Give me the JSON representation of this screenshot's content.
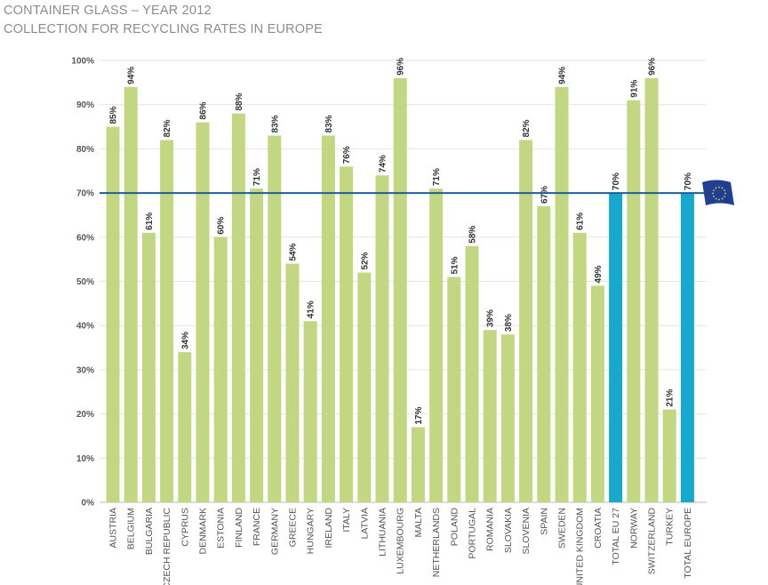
{
  "title": "CONTAINER GLASS – YEAR 2012",
  "subtitle": "COLLECTION FOR RECYCLING RATES IN EUROPE",
  "colors": {
    "bar": "#c3d783",
    "total_bar": "#16a9cd",
    "target_line": "#1b5e9a",
    "flag_bg": "#1f3f97",
    "flag_stars": "#f5d800"
  },
  "icons": {
    "flag": "eu-flag-icon"
  },
  "chart_data": {
    "type": "bar",
    "title": "CONTAINER GLASS – YEAR 2012",
    "subtitle": "COLLECTION FOR RECYCLING RATES IN EUROPE",
    "xlabel": "",
    "ylabel": "",
    "ylim": [
      0,
      100
    ],
    "y_ticks": [
      0,
      10,
      20,
      30,
      40,
      50,
      60,
      70,
      80,
      90,
      100
    ],
    "y_tick_labels": [
      "0%",
      "10%",
      "20%",
      "30%",
      "40%",
      "50%",
      "60%",
      "70%",
      "80%",
      "90%",
      "100%"
    ],
    "grid": true,
    "target_line": 70,
    "categories": [
      "AUSTRIA",
      "BELGIUM",
      "BULGARIA",
      "CZECH REPUBLIC",
      "CYPRUS",
      "DENMARK",
      "ESTONIA",
      "FINLAND",
      "FRANCE",
      "GERMANY",
      "GREECE",
      "HUNGARY",
      "IRELAND",
      "ITALY",
      "LATVIA",
      "LITHUANIA",
      "LUXEMBOURG",
      "MALTA",
      "NETHERLANDS",
      "POLAND",
      "PORTUGAL",
      "ROMANIA",
      "SLOVAKIA",
      "SLOVENIA",
      "SPAIN",
      "SWEDEN",
      "UNITED KINGDOM",
      "CROATIA",
      "TOTAL EU 27",
      "NORWAY",
      "SWITZERLAND",
      "TURKEY",
      "TOTAL EUROPE"
    ],
    "values": [
      85,
      94,
      61,
      82,
      34,
      86,
      60,
      88,
      71,
      83,
      54,
      41,
      83,
      76,
      52,
      74,
      96,
      17,
      71,
      51,
      58,
      39,
      38,
      82,
      67,
      94,
      61,
      49,
      70,
      91,
      96,
      21,
      70
    ],
    "value_labels": [
      "85%",
      "94%",
      "61%",
      "82%",
      "34%",
      "86%",
      "60%",
      "88%",
      "71%",
      "83%",
      "54%",
      "41%",
      "83%",
      "76%",
      "52%",
      "74%",
      "96%",
      "17%",
      "71%",
      "51%",
      "58%",
      "39%",
      "38%",
      "82%",
      "67%",
      "94%",
      "61%",
      "49%",
      "70%",
      "91%",
      "96%",
      "21%",
      "70%"
    ],
    "highlighted": [
      "TOTAL EU 27",
      "TOTAL EUROPE"
    ]
  }
}
